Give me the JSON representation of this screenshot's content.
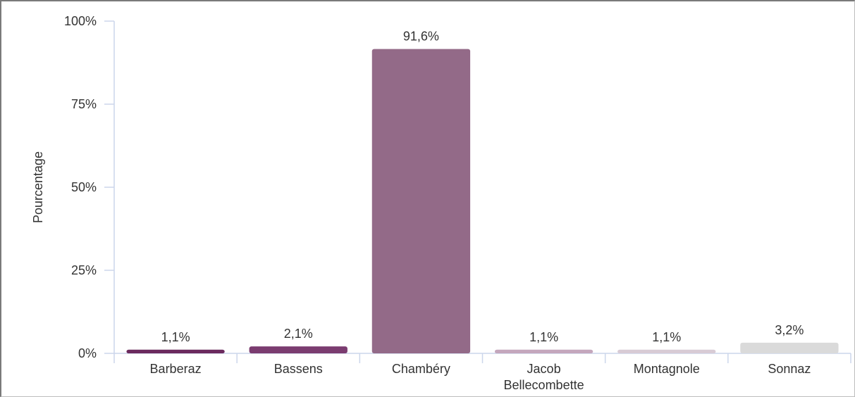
{
  "chart_data": {
    "type": "bar",
    "title": "",
    "xlabel": "",
    "ylabel": "Pourcentage",
    "ylim": [
      0,
      100
    ],
    "y_ticks": [
      {
        "value": 0,
        "label": "0%"
      },
      {
        "value": 25,
        "label": "25%"
      },
      {
        "value": 50,
        "label": "50%"
      },
      {
        "value": 75,
        "label": "75%"
      },
      {
        "value": 100,
        "label": "100%"
      }
    ],
    "grid": false,
    "legend": "none",
    "categories": [
      "Barberaz",
      "Bassens",
      "Chambéry",
      "Jacob Bellecombette",
      "Montagnole",
      "Sonnaz"
    ],
    "values": [
      1.1,
      2.1,
      91.6,
      1.1,
      1.1,
      3.2
    ],
    "value_labels": [
      "1,1%",
      "2,1%",
      "91,6%",
      "1,1%",
      "1,1%",
      "3,2%"
    ],
    "colors": [
      "#6b2a5e",
      "#7b3c70",
      "#936a88",
      "#c4a7bd",
      "#d8cbd5",
      "#dadada"
    ],
    "axis_color": "#ccd6eb"
  }
}
